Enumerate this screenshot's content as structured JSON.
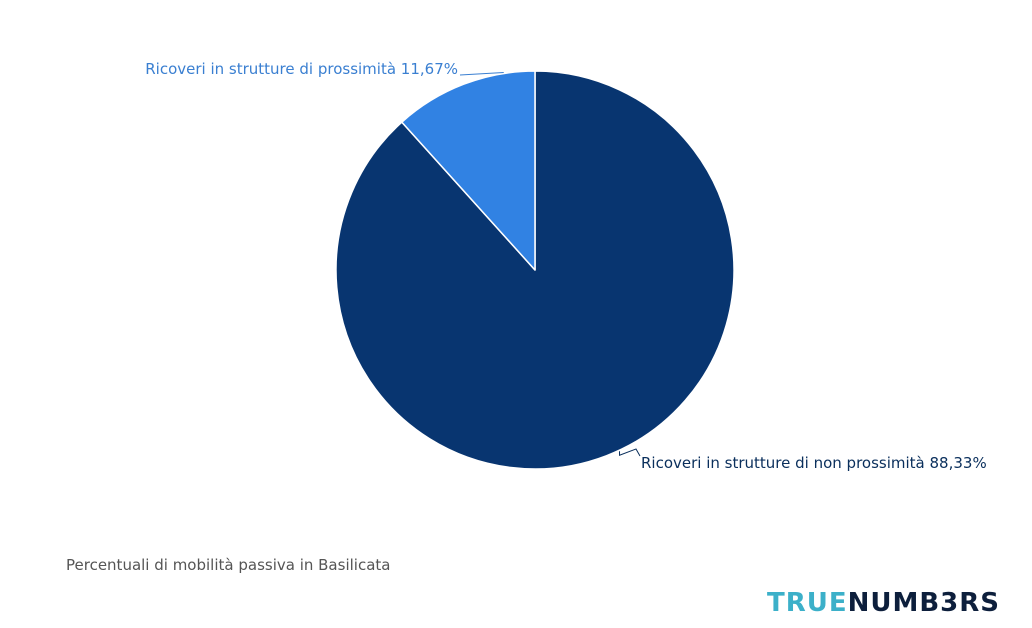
{
  "chart_data": {
    "type": "pie",
    "slices": [
      {
        "label": "Ricoveri in strutture di non prossimità 88,33%",
        "value": 88.33,
        "color": "#083570"
      },
      {
        "label": "Ricoveri in strutture di prossimità 11,67%",
        "value": 11.67,
        "color": "#3182e3"
      }
    ],
    "start": "12 o'clock",
    "direction": "clockwise",
    "label_colors": [
      "#0a2f5c",
      "#3a7fd1"
    ]
  },
  "caption": "Percentuali di mobilità passiva in Basilicata",
  "logo": {
    "part1": "TRUE",
    "part2": "NUMB3RS",
    "color1": "#3cb0c9",
    "color2": "#0d1f3c"
  }
}
